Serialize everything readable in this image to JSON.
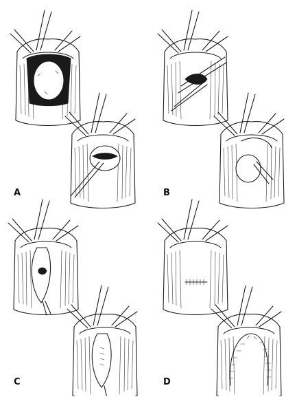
{
  "panels": [
    {
      "label": "A"
    },
    {
      "label": "B"
    },
    {
      "label": "C"
    },
    {
      "label": "D"
    }
  ],
  "colors": {
    "ink": "#1a1a1a",
    "background": "#ffffff"
  }
}
